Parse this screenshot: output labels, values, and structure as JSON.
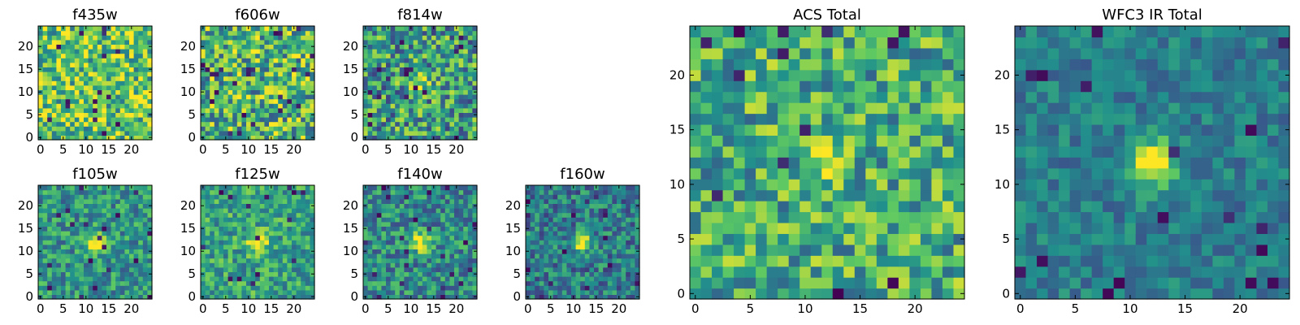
{
  "figure": {
    "description_free": true
  },
  "colormap": {
    "name": "viridis",
    "stops": [
      "#440154",
      "#3b528b",
      "#21918c",
      "#5ec962",
      "#fde725"
    ]
  },
  "chart_data": [
    {
      "id": "f435w",
      "type": "heatmap",
      "title": "f435w",
      "grid": [
        25,
        25
      ],
      "xticks": [
        "0",
        "5",
        "10",
        "15",
        "20"
      ],
      "yticks": [
        "0",
        "5",
        "10",
        "15",
        "20"
      ],
      "xlim": [
        -0.5,
        24.5
      ],
      "ylim": [
        -0.5,
        24.5
      ],
      "seed": 11,
      "peak": 0.0,
      "mean": 0.72,
      "noise": 0.34
    },
    {
      "id": "f606w",
      "type": "heatmap",
      "title": "f606w",
      "grid": [
        25,
        25
      ],
      "xticks": [
        "0",
        "5",
        "10",
        "15",
        "20"
      ],
      "yticks": [
        "0",
        "5",
        "10",
        "15",
        "20"
      ],
      "xlim": [
        -0.5,
        24.5
      ],
      "ylim": [
        -0.5,
        24.5
      ],
      "seed": 23,
      "peak": 0.0,
      "mean": 0.66,
      "noise": 0.38
    },
    {
      "id": "f814w",
      "type": "heatmap",
      "title": "f814w",
      "grid": [
        25,
        25
      ],
      "xticks": [
        "0",
        "5",
        "10",
        "15",
        "20"
      ],
      "yticks": [
        "0",
        "5",
        "10",
        "15",
        "20"
      ],
      "xlim": [
        -0.5,
        24.5
      ],
      "ylim": [
        -0.5,
        24.5
      ],
      "seed": 37,
      "peak": 0.35,
      "mean": 0.55,
      "noise": 0.36
    },
    {
      "id": "f105w",
      "type": "heatmap",
      "title": "f105w",
      "grid": [
        25,
        25
      ],
      "xticks": [
        "0",
        "5",
        "10",
        "15",
        "20"
      ],
      "yticks": [
        "0",
        "5",
        "10",
        "15",
        "20"
      ],
      "xlim": [
        -0.5,
        24.5
      ],
      "ylim": [
        -0.5,
        24.5
      ],
      "seed": 41,
      "peak": 0.55,
      "mean": 0.52,
      "noise": 0.24
    },
    {
      "id": "f125w",
      "type": "heatmap",
      "title": "f125w",
      "grid": [
        25,
        25
      ],
      "xticks": [
        "0",
        "5",
        "10",
        "15",
        "20"
      ],
      "yticks": [
        "0",
        "5",
        "10",
        "15",
        "20"
      ],
      "xlim": [
        -0.5,
        24.5
      ],
      "ylim": [
        -0.5,
        24.5
      ],
      "seed": 53,
      "peak": 0.5,
      "mean": 0.58,
      "noise": 0.24
    },
    {
      "id": "f140w",
      "type": "heatmap",
      "title": "f140w",
      "grid": [
        25,
        25
      ],
      "xticks": [
        "0",
        "5",
        "10",
        "15",
        "20"
      ],
      "yticks": [
        "0",
        "5",
        "10",
        "15",
        "20"
      ],
      "xlim": [
        -0.5,
        24.5
      ],
      "ylim": [
        -0.5,
        24.5
      ],
      "seed": 67,
      "peak": 0.55,
      "mean": 0.48,
      "noise": 0.25
    },
    {
      "id": "f160w",
      "type": "heatmap",
      "title": "f160w",
      "grid": [
        25,
        25
      ],
      "xticks": [
        "0",
        "5",
        "10",
        "15",
        "20"
      ],
      "yticks": [
        "0",
        "5",
        "10",
        "15",
        "20"
      ],
      "xlim": [
        -0.5,
        24.5
      ],
      "ylim": [
        -0.5,
        24.5
      ],
      "seed": 79,
      "peak": 0.6,
      "mean": 0.42,
      "noise": 0.24
    },
    {
      "id": "acs-total",
      "type": "heatmap",
      "title": "ACS Total",
      "grid": [
        25,
        25
      ],
      "xticks": [
        "0",
        "5",
        "10",
        "15",
        "20"
      ],
      "yticks": [
        "0",
        "5",
        "10",
        "15",
        "20"
      ],
      "xlim": [
        -0.5,
        24.5
      ],
      "ylim": [
        -0.5,
        24.5
      ],
      "seed": 97,
      "peak": 0.2,
      "mean": 0.62,
      "noise": 0.3
    },
    {
      "id": "wfc3-ir-total",
      "type": "heatmap",
      "title": "WFC3 IR Total",
      "grid": [
        25,
        25
      ],
      "xticks": [
        "0",
        "5",
        "10",
        "15",
        "20"
      ],
      "yticks": [
        "0",
        "5",
        "10",
        "15",
        "20"
      ],
      "xlim": [
        -0.5,
        24.5
      ],
      "ylim": [
        -0.5,
        24.5
      ],
      "seed": 113,
      "peak": 0.65,
      "mean": 0.42,
      "noise": 0.15
    }
  ]
}
